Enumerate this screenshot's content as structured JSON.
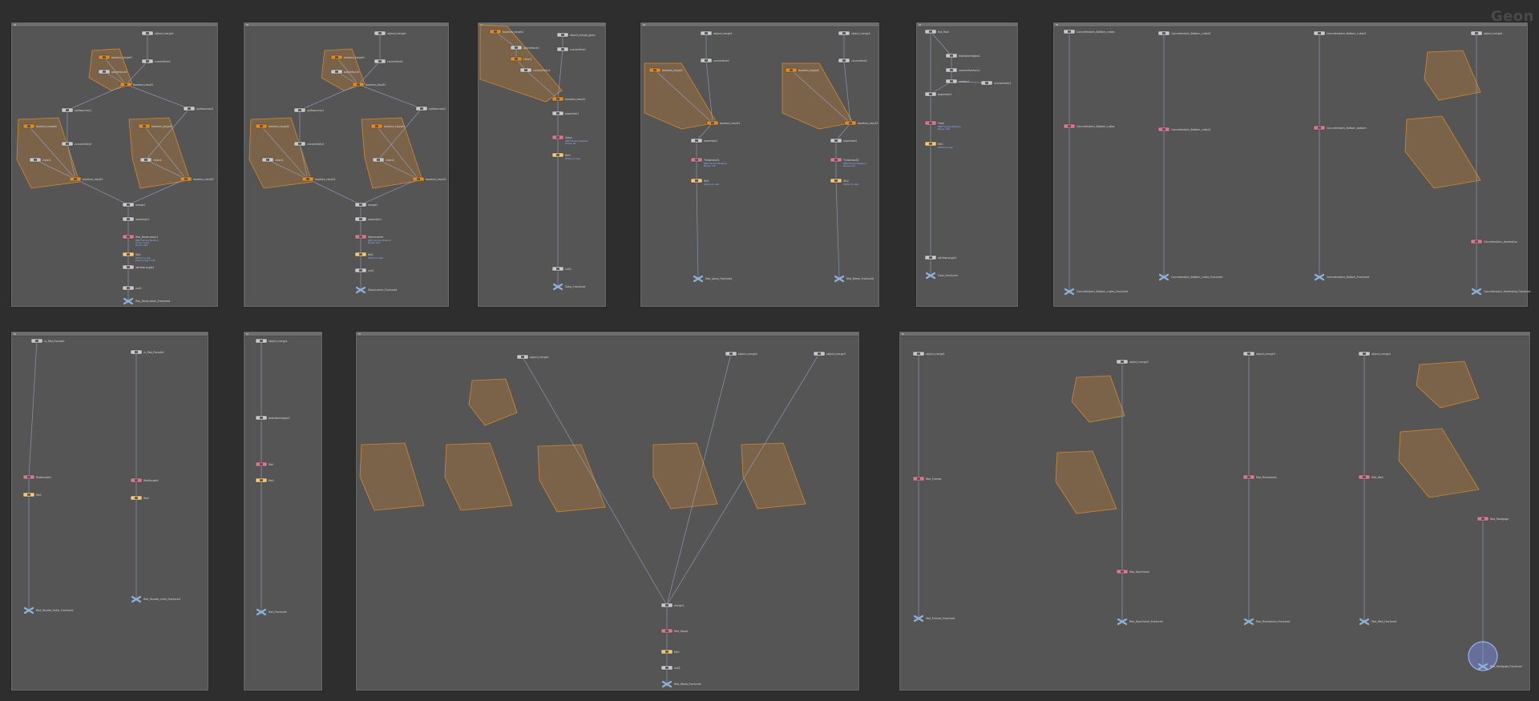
{
  "app": {
    "brand": "Geon"
  },
  "colors": {
    "background": "#2e2e2e",
    "netbox_fill": "#555555",
    "wire": "#9aa6c8",
    "node_default": "#c8c8c8",
    "node_orange": "#e08a20",
    "node_pink": "#d87890",
    "node_yellow": "#f0c878",
    "node_output": "#8fb0d8",
    "group_fill": "#9a7040",
    "info_text": "#8fb4ff"
  },
  "networks": [
    {
      "id": "nb1",
      "header": "",
      "nodes": [
        {
          "id": "n1",
          "kind": "default",
          "label": "object_merge1"
        },
        {
          "id": "n2",
          "kind": "orange",
          "label": "boolean_target1"
        },
        {
          "id": "n3",
          "kind": "default",
          "label": "polyreduce1"
        },
        {
          "id": "n4",
          "kind": "default",
          "label": "convertline1"
        },
        {
          "id": "n5",
          "kind": "orange",
          "label": "boolean_result1"
        },
        {
          "id": "n6",
          "kind": "default",
          "label": "splitsources1"
        },
        {
          "id": "n7",
          "kind": "default",
          "label": "splitsources2"
        },
        {
          "id": "n8",
          "kind": "orange",
          "label": "boolean_target2"
        },
        {
          "id": "n9",
          "kind": "default",
          "label": "clean1"
        },
        {
          "id": "n10",
          "kind": "default",
          "label": "connectivity1"
        },
        {
          "id": "n11",
          "kind": "orange",
          "label": "boolean_result2"
        },
        {
          "id": "n12",
          "kind": "orange",
          "label": "boolean_target3"
        },
        {
          "id": "n13",
          "kind": "default",
          "label": "clean2"
        },
        {
          "id": "n14",
          "kind": "orange",
          "label": "boolean_result3"
        },
        {
          "id": "n15",
          "kind": "default",
          "label": "merge1"
        },
        {
          "id": "n16",
          "kind": "default",
          "label": "assemble1"
        },
        {
          "id": "n17",
          "kind": "pink",
          "label": "Rbd_Destruction1",
          "info": [
            "RBD Fracture Material",
            "Group: inside",
            "Pieces: 248"
          ]
        },
        {
          "id": "n18",
          "kind": "yellow",
          "label": "file1",
          "info": [
            "Written to disk",
            "frame range 1-240"
          ]
        },
        {
          "id": "n19",
          "kind": "default",
          "label": "attribwrangle1"
        },
        {
          "id": "n20",
          "kind": "default",
          "label": "null1"
        },
        {
          "id": "n21",
          "kind": "output",
          "label": "Rbd_Destruction_Fractured"
        }
      ]
    },
    {
      "id": "nb2",
      "header": "",
      "nodes": [
        {
          "id": "n1",
          "kind": "default",
          "label": "object_merge1"
        },
        {
          "id": "n2",
          "kind": "orange",
          "label": "boolean_target1"
        },
        {
          "id": "n3",
          "kind": "default",
          "label": "polyreduce1"
        },
        {
          "id": "n4",
          "kind": "default",
          "label": "convertline1"
        },
        {
          "id": "n5",
          "kind": "orange",
          "label": "boolean_result1"
        },
        {
          "id": "n6",
          "kind": "default",
          "label": "splitsources1"
        },
        {
          "id": "n7",
          "kind": "default",
          "label": "splitsources2"
        },
        {
          "id": "n8",
          "kind": "orange",
          "label": "boolean_target2"
        },
        {
          "id": "n9",
          "kind": "default",
          "label": "clean1"
        },
        {
          "id": "n10",
          "kind": "default",
          "label": "connectivity1"
        },
        {
          "id": "n11",
          "kind": "orange",
          "label": "boolean_result2"
        },
        {
          "id": "n12",
          "kind": "orange",
          "label": "boolean_target3"
        },
        {
          "id": "n13",
          "kind": "default",
          "label": "clean2"
        },
        {
          "id": "n14",
          "kind": "orange",
          "label": "boolean_result3"
        },
        {
          "id": "n15",
          "kind": "default",
          "label": "merge1"
        },
        {
          "id": "n16",
          "kind": "default",
          "label": "assemble1"
        },
        {
          "id": "n17",
          "kind": "pink",
          "label": "Stonecorner",
          "info": [
            "RBD Fracture Material",
            "Pieces: 212"
          ]
        },
        {
          "id": "n18",
          "kind": "yellow",
          "label": "file1",
          "info": [
            "Written to disk"
          ]
        },
        {
          "id": "n19",
          "kind": "default",
          "label": "null1"
        },
        {
          "id": "n20",
          "kind": "output",
          "label": "Stonecorner_Fractured"
        }
      ]
    },
    {
      "id": "nb3",
      "header": "",
      "nodes": [
        {
          "id": "n1",
          "kind": "orange",
          "label": "boolean_target1"
        },
        {
          "id": "n2",
          "kind": "default",
          "label": "object_merge_glass"
        },
        {
          "id": "n3",
          "kind": "default",
          "label": "polyreduce1"
        },
        {
          "id": "n4",
          "kind": "orange",
          "label": "clean1"
        },
        {
          "id": "n5",
          "kind": "default",
          "label": "convertline1"
        },
        {
          "id": "n6",
          "kind": "default",
          "label": "connectivity1"
        },
        {
          "id": "n7",
          "kind": "orange",
          "label": "boolean_result1"
        },
        {
          "id": "n8",
          "kind": "default",
          "label": "assemble1"
        },
        {
          "id": "n9",
          "kind": "pink",
          "label": "Glass",
          "info": [
            "RBD Fracture Material",
            "Pieces: 96"
          ]
        },
        {
          "id": "n10",
          "kind": "yellow",
          "label": "file1",
          "info": [
            "Written to disk"
          ]
        },
        {
          "id": "n11",
          "kind": "default",
          "label": "null1"
        },
        {
          "id": "n12",
          "kind": "output",
          "label": "Glass_Fractured"
        }
      ]
    },
    {
      "id": "nb4",
      "header": "",
      "nodes": [
        {
          "id": "n1",
          "kind": "default",
          "label": "object_merge1"
        },
        {
          "id": "n2",
          "kind": "default",
          "label": "object_merge2"
        },
        {
          "id": "n3",
          "kind": "default",
          "label": "convertline1"
        },
        {
          "id": "n4",
          "kind": "default",
          "label": "convertline2"
        },
        {
          "id": "n5",
          "kind": "orange",
          "label": "boolean_target1"
        },
        {
          "id": "n6",
          "kind": "orange",
          "label": "boolean_target2"
        },
        {
          "id": "n7",
          "kind": "orange",
          "label": "boolean_result1"
        },
        {
          "id": "n8",
          "kind": "orange",
          "label": "boolean_result2"
        },
        {
          "id": "n9",
          "kind": "default",
          "label": "assemble1"
        },
        {
          "id": "n10",
          "kind": "default",
          "label": "assemble2"
        },
        {
          "id": "n11",
          "kind": "pink",
          "label": "Timberwall1",
          "info": [
            "RBD Fracture Material",
            "Pieces: 130"
          ]
        },
        {
          "id": "n12",
          "kind": "pink",
          "label": "Timberwall2",
          "info": [
            "RBD Fracture Material",
            "Pieces: 144"
          ]
        },
        {
          "id": "n13",
          "kind": "yellow",
          "label": "file1",
          "info": [
            "Written to disk"
          ]
        },
        {
          "id": "n14",
          "kind": "yellow",
          "label": "file2",
          "info": [
            "Written to disk"
          ]
        },
        {
          "id": "n15",
          "kind": "output",
          "label": "Rbd_plank_Fractured"
        },
        {
          "id": "n16",
          "kind": "output",
          "label": "Rbd_Beam_Fractured"
        }
      ]
    },
    {
      "id": "nb5",
      "header": "",
      "nodes": [
        {
          "id": "n1",
          "kind": "default",
          "label": "rbd_floor"
        },
        {
          "id": "n2",
          "kind": "default",
          "label": "rbdmaterialgeo1"
        },
        {
          "id": "n3",
          "kind": "default",
          "label": "voronoifracture1"
        },
        {
          "id": "n4",
          "kind": "default",
          "label": "scatter1"
        },
        {
          "id": "n5",
          "kind": "default",
          "label": "connectivity1"
        },
        {
          "id": "n6",
          "kind": "default",
          "label": "assemble1"
        },
        {
          "id": "n7",
          "kind": "pink",
          "label": "Floor",
          "info": [
            "RBD Fracture Material",
            "Pieces: 420"
          ]
        },
        {
          "id": "n8",
          "kind": "yellow",
          "label": "file1",
          "info": [
            "Written to disk"
          ]
        },
        {
          "id": "n9",
          "kind": "default",
          "label": "attribwrangle1"
        },
        {
          "id": "n10",
          "kind": "output",
          "label": "Floor_Fractured"
        }
      ]
    },
    {
      "id": "nb6",
      "header": "",
      "nodes": [
        {
          "id": "n1",
          "kind": "default",
          "label": "Concretestairs_Bottom_cubes"
        },
        {
          "id": "n2",
          "kind": "default",
          "label": "Concretestairs_Bottom_cubes2"
        },
        {
          "id": "n3",
          "kind": "default",
          "label": "Concretestairs_Bottom_cubes3"
        },
        {
          "id": "n4",
          "kind": "default",
          "label": "object_merge1"
        },
        {
          "id": "n5",
          "kind": "pink",
          "label": "Concretestairs_Bottom_cubes"
        },
        {
          "id": "n6",
          "kind": "pink",
          "label": "Concretestairs_Bottom_cubes2"
        },
        {
          "id": "n7",
          "kind": "pink",
          "label": "Concretestairs_Bottom_bottom"
        },
        {
          "id": "n8",
          "kind": "pink",
          "label": "Concretestairs_Handrailsa"
        },
        {
          "id": "n9",
          "kind": "output",
          "label": "Concretestairs_Bottom_cubes_Fractured"
        },
        {
          "id": "n10",
          "kind": "output",
          "label": "Concretestairs_Bottom_cubes_Fractured"
        },
        {
          "id": "n11",
          "kind": "output",
          "label": "Concretestairs_Bottom_Fractured"
        },
        {
          "id": "n12",
          "kind": "output",
          "label": "Concretestairs_Handrailsa_Fractured"
        }
      ]
    },
    {
      "id": "nb7",
      "header": "",
      "nodes": [
        {
          "id": "n1",
          "kind": "default",
          "label": "rs_Rbd_Facade1"
        },
        {
          "id": "n2",
          "kind": "default",
          "label": "rs_Rbd_Facade2"
        },
        {
          "id": "n3",
          "kind": "pink",
          "label": "Rbdfacade1"
        },
        {
          "id": "n4",
          "kind": "pink",
          "label": "Rbdfacade2"
        },
        {
          "id": "n5",
          "kind": "yellow",
          "label": "file1"
        },
        {
          "id": "n6",
          "kind": "yellow",
          "label": "file2"
        },
        {
          "id": "n7",
          "kind": "output",
          "label": "Rbd_Facade_Outer_Fractured"
        },
        {
          "id": "n8",
          "kind": "output",
          "label": "Rbd_Facade_Inner_Fractured"
        }
      ]
    },
    {
      "id": "nb8",
      "header": "",
      "nodes": [
        {
          "id": "n1",
          "kind": "default",
          "label": "object_merge1"
        },
        {
          "id": "n2",
          "kind": "default",
          "label": "rbdmaterialgeo1"
        },
        {
          "id": "n3",
          "kind": "pink",
          "label": "Rail"
        },
        {
          "id": "n4",
          "kind": "yellow",
          "label": "file1"
        },
        {
          "id": "n5",
          "kind": "output",
          "label": "Rail_Fractured"
        }
      ]
    },
    {
      "id": "nb9",
      "header": "",
      "nodes": [
        {
          "id": "n1",
          "kind": "default",
          "label": "object_merge1"
        },
        {
          "id": "n2",
          "kind": "default",
          "label": "object_merge2"
        },
        {
          "id": "n3",
          "kind": "default",
          "label": "object_merge3"
        },
        {
          "id": "n4",
          "kind": "default",
          "label": "merge1"
        },
        {
          "id": "n5",
          "kind": "pink",
          "label": "Rbd_Wood"
        },
        {
          "id": "n6",
          "kind": "yellow",
          "label": "file1"
        },
        {
          "id": "n7",
          "kind": "default",
          "label": "null1"
        },
        {
          "id": "n8",
          "kind": "output",
          "label": "Rbd_Wood_Fractured"
        }
      ]
    },
    {
      "id": "nb10",
      "header": "",
      "nodes": [
        {
          "id": "n1",
          "kind": "default",
          "label": "object_merge1"
        },
        {
          "id": "n2",
          "kind": "default",
          "label": "object_merge2"
        },
        {
          "id": "n3",
          "kind": "default",
          "label": "object_merge3"
        },
        {
          "id": "n4",
          "kind": "default",
          "label": "object_merge4"
        },
        {
          "id": "n5",
          "kind": "pink",
          "label": "Rbd_Frames"
        },
        {
          "id": "n6",
          "kind": "pink",
          "label": "Rbd_Doorframe"
        },
        {
          "id": "n7",
          "kind": "pink",
          "label": "Rbd_Riverbanks"
        },
        {
          "id": "n8",
          "kind": "pink",
          "label": "Rbd_Wall"
        },
        {
          "id": "n9",
          "kind": "pink",
          "label": "Rbd_Rastgage"
        },
        {
          "id": "n10",
          "kind": "output",
          "label": "Rbd_Frames_Fractured"
        },
        {
          "id": "n11",
          "kind": "output",
          "label": "Rbd_Doorframe_Fractured"
        },
        {
          "id": "n12",
          "kind": "output",
          "label": "Rbd_Riverbanks_Fractured"
        },
        {
          "id": "n13",
          "kind": "output",
          "label": "Rbd_Wall_Fractured"
        },
        {
          "id": "n14",
          "kind": "output",
          "label": "Rbd_Rastgage_Fractured"
        }
      ]
    }
  ]
}
